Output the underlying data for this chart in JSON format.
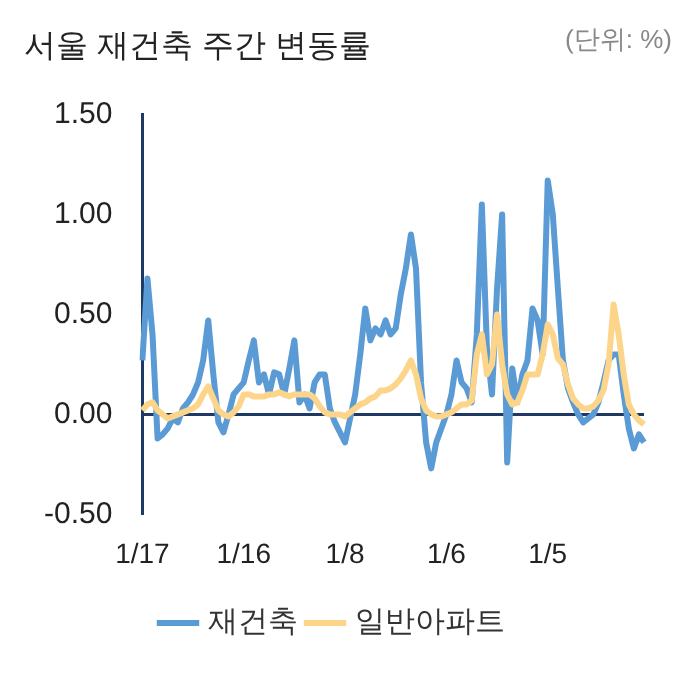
{
  "chart_data": {
    "type": "line",
    "title": "서울 재건축 주간 변동률",
    "annotations": [
      "(단위: %)"
    ],
    "categories": [
      "1/17",
      null,
      null,
      null,
      null,
      null,
      null,
      null,
      null,
      null,
      null,
      null,
      null,
      null,
      null,
      null,
      null,
      null,
      null,
      null,
      "1/16",
      null,
      null,
      null,
      null,
      null,
      null,
      null,
      null,
      null,
      null,
      null,
      null,
      null,
      null,
      null,
      null,
      null,
      null,
      null,
      "1/8",
      null,
      null,
      null,
      null,
      null,
      null,
      null,
      null,
      null,
      null,
      null,
      null,
      null,
      null,
      null,
      null,
      null,
      null,
      null,
      "1/6",
      null,
      null,
      null,
      null,
      null,
      null,
      null,
      null,
      null,
      null,
      null,
      null,
      null,
      null,
      null,
      null,
      null,
      null,
      null,
      "1/5",
      null,
      null,
      null,
      null,
      null,
      null,
      null,
      null,
      null,
      null,
      null,
      null,
      null,
      null,
      null,
      null,
      null,
      null,
      null
    ],
    "series": [
      {
        "name": "재건축",
        "color": "#5b9bd5",
        "values": [
          0.27,
          0.68,
          0.4,
          -0.12,
          -0.1,
          -0.07,
          -0.02,
          -0.04,
          0.03,
          0.06,
          0.1,
          0.16,
          0.27,
          0.47,
          0.2,
          -0.04,
          -0.09,
          0,
          0.1,
          0.13,
          0.16,
          0.27,
          0.37,
          0.16,
          0.2,
          0.1,
          0.21,
          0.2,
          0.1,
          0.23,
          0.37,
          0.06,
          0.1,
          0.03,
          0.16,
          0.2,
          0.2,
          0.03,
          -0.04,
          -0.09,
          -0.14,
          -0.02,
          0.1,
          0.3,
          0.53,
          0.37,
          0.43,
          0.4,
          0.47,
          0.4,
          0.43,
          0.6,
          0.73,
          0.9,
          0.73,
          0.16,
          -0.14,
          -0.27,
          -0.14,
          -0.07,
          0,
          0.1,
          0.27,
          0.16,
          0.13,
          0.06,
          0.4,
          1.05,
          0.33,
          0.1,
          0.63,
          1.0,
          -0.24,
          0.23,
          0.06,
          0.2,
          0.27,
          0.53,
          0.47,
          0.3,
          1.17,
          1.0,
          0.63,
          0.27,
          0.13,
          0.06,
          0,
          -0.04,
          -0.02,
          0,
          0.06,
          0.16,
          0.27,
          0.3,
          0.3,
          0.1,
          -0.07,
          -0.17,
          -0.1,
          -0.14
        ]
      },
      {
        "name": "일반아파트",
        "color": "#fdd58a",
        "values": [
          0.02,
          0.05,
          0.06,
          0.02,
          0,
          -0.02,
          -0.01,
          0,
          0.01,
          0.02,
          0.03,
          0.05,
          0.1,
          0.14,
          0.08,
          0.02,
          0,
          -0.01,
          0.01,
          0.04,
          0.1,
          0.1,
          0.09,
          0.09,
          0.09,
          0.1,
          0.1,
          0.11,
          0.1,
          0.09,
          0.1,
          0.1,
          0.1,
          0.1,
          0.08,
          0.04,
          0.01,
          0,
          0,
          0,
          -0.01,
          0.01,
          0.03,
          0.05,
          0.06,
          0.08,
          0.09,
          0.12,
          0.12,
          0.13,
          0.15,
          0.18,
          0.22,
          0.27,
          0.2,
          0.08,
          0.02,
          0,
          -0.01,
          -0.01,
          0,
          0.01,
          0.03,
          0.05,
          0.05,
          0.07,
          0.3,
          0.4,
          0.2,
          0.25,
          0.5,
          0.25,
          0.1,
          0.05,
          0.06,
          0.12,
          0.2,
          0.2,
          0.2,
          0.3,
          0.45,
          0.4,
          0.28,
          0.25,
          0.15,
          0.08,
          0.05,
          0.03,
          0.03,
          0.04,
          0.07,
          0.12,
          0.25,
          0.55,
          0.4,
          0.2,
          0.05,
          0,
          -0.03,
          -0.05
        ]
      }
    ],
    "ylim": [
      -0.5,
      1.5
    ],
    "yticks": [
      {
        "value": 1.5,
        "label": "1.50"
      },
      {
        "value": 1,
        "label": "1.00"
      },
      {
        "value": 0.5,
        "label": "0.50"
      },
      {
        "value": 0,
        "label": "0.00"
      },
      {
        "value": -0.5,
        "label": "-0.50"
      }
    ],
    "ref_lines": [
      {
        "axis": "y",
        "value": 0,
        "color": "#1f3864"
      }
    ],
    "grid": false,
    "legend": "bottom",
    "marker": "none",
    "line_style": "solid"
  }
}
